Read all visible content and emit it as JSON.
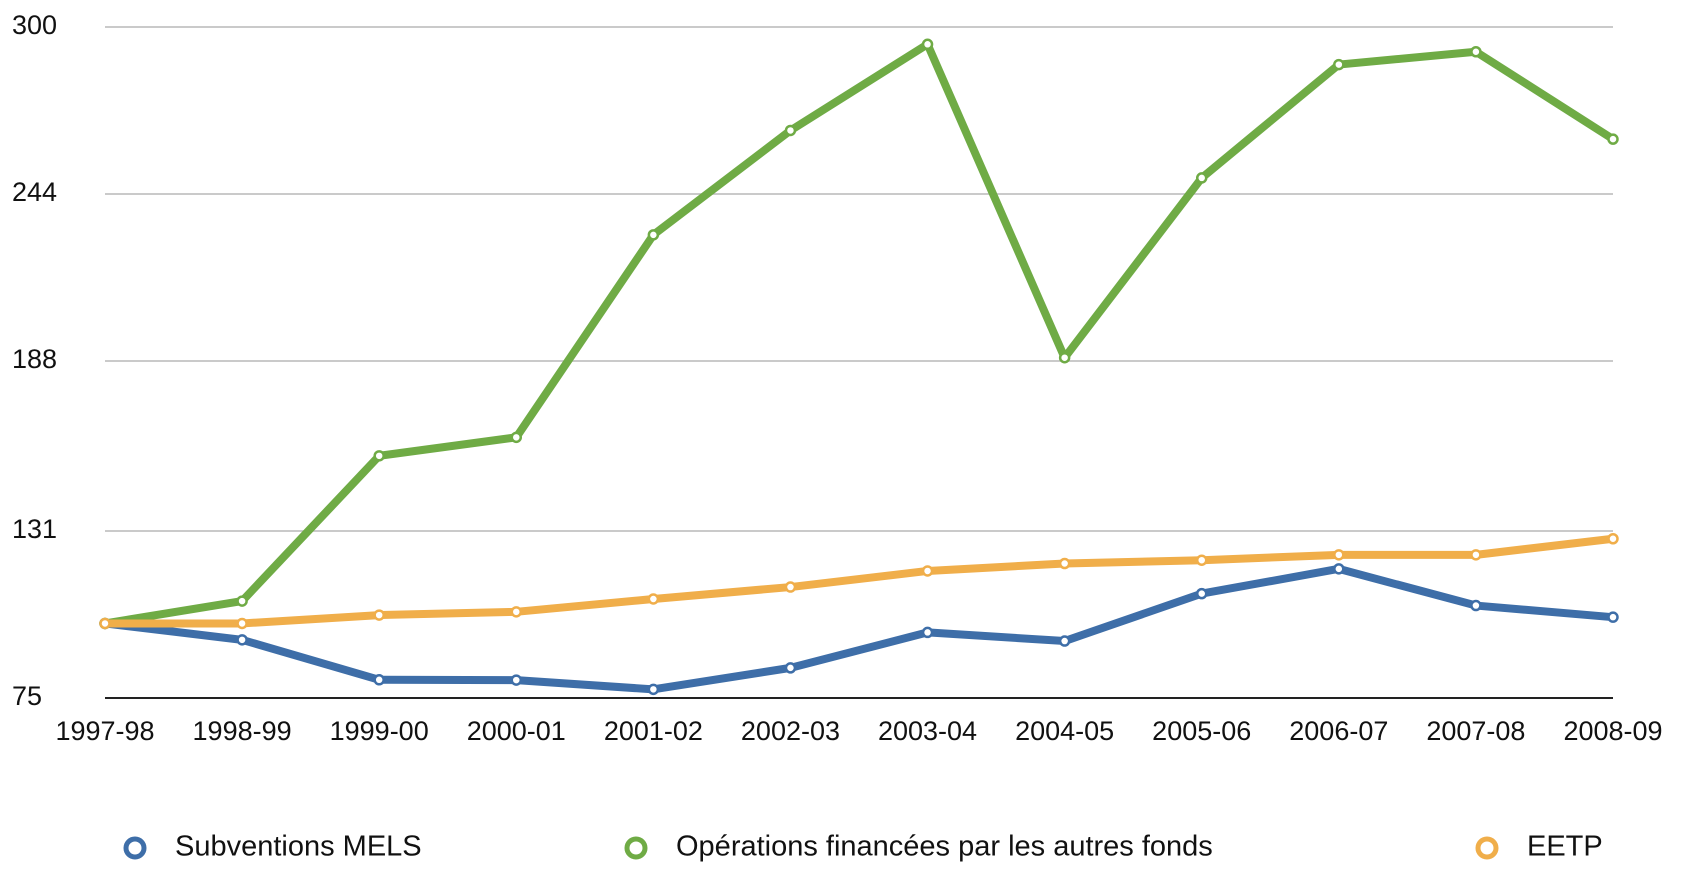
{
  "chart_data": {
    "type": "line",
    "categories": [
      "1997-98",
      "1998-99",
      "1999-00",
      "2000-01",
      "2001-02",
      "2002-03",
      "2003-04",
      "2004-05",
      "2005-06",
      "2006-07",
      "2007-08",
      "2008-09"
    ],
    "series": [
      {
        "name": "Subventions MELS",
        "color": "#3e6ea8",
        "values": [
          100,
          94.5,
          81.1,
          81,
          77.9,
          85.1,
          97,
          94.1,
          110,
          118.3,
          106,
          102.1
        ]
      },
      {
        "name": "Opérations financées par les autres fonds",
        "color": "#6fab45",
        "values": [
          100,
          107.5,
          156.2,
          162.4,
          230.3,
          265.3,
          294.2,
          189.1,
          249.4,
          287.4,
          291.7,
          262.4
        ]
      },
      {
        "name": "EETP",
        "color": "#f0ae4a",
        "values": [
          100,
          100,
          102.8,
          103.9,
          108.2,
          112.2,
          117.6,
          120.1,
          121.2,
          123,
          123,
          128.4
        ]
      }
    ],
    "ylim": [
      75,
      300
    ],
    "yticks": [
      75,
      131,
      188,
      244,
      300
    ],
    "grid": true,
    "legend": "bottom"
  }
}
